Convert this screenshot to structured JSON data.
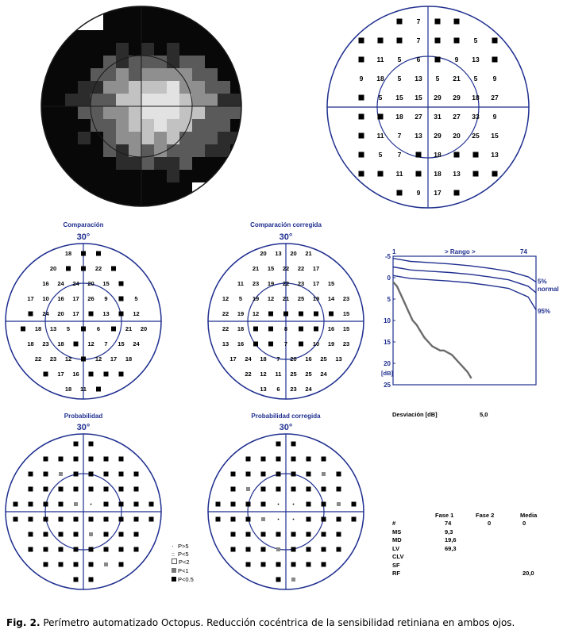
{
  "top_right_grid": {
    "values": [
      [
        "",
        "",
        "",
        "7",
        "",
        "",
        "",
        ""
      ],
      [
        "",
        "",
        "",
        "7",
        "",
        "",
        "5",
        ""
      ],
      [
        "",
        "11",
        "5",
        "6",
        "",
        "9",
        "13",
        ""
      ],
      [
        "9",
        "18",
        "5",
        "13",
        "5",
        "21",
        "5",
        "9"
      ],
      [
        "",
        "5",
        "15",
        "15",
        "29",
        "29",
        "18",
        "27"
      ],
      [
        "",
        "",
        "18",
        "27",
        "31",
        "27",
        "33",
        "9"
      ],
      [
        "",
        "11",
        "7",
        "13",
        "29",
        "20",
        "25",
        "15"
      ],
      [
        "",
        "5",
        "7",
        "",
        "18",
        "",
        "",
        "13"
      ],
      [
        "",
        "",
        "11",
        "",
        "18",
        "13",
        "",
        ""
      ],
      [
        "",
        "",
        "",
        "9",
        "17",
        "",
        "",
        ""
      ]
    ]
  },
  "panels": {
    "comparison": {
      "title": "Comparación",
      "degree": "30°"
    },
    "comparison_corrected": {
      "title": "Comparación corregida",
      "degree": "30°"
    },
    "probability": {
      "title": "Probabilidad",
      "degree": "30°"
    },
    "probability_corrected": {
      "title": "Probabilidad corregida",
      "degree": "30°"
    }
  },
  "comparison_grid": [
    [
      "",
      "18",
      "",
      "",
      ""
    ],
    [
      "20",
      "",
      "",
      "22",
      ""
    ],
    [
      "16",
      "24",
      "24",
      "20",
      "15",
      ""
    ],
    [
      "17",
      "10",
      "16",
      "17",
      "26",
      "9",
      "",
      "5"
    ],
    [
      "",
      "24",
      "20",
      "17",
      "",
      "13",
      "",
      "12"
    ],
    [
      "",
      "18",
      "13",
      "5",
      "",
      "6",
      "",
      "21",
      "20"
    ],
    [
      "18",
      "23",
      "18",
      "",
      "12",
      "7",
      "15",
      "24"
    ],
    [
      "22",
      "23",
      "12",
      "",
      "12",
      "17",
      "18"
    ],
    [
      "",
      "17",
      "16",
      "",
      "",
      ""
    ],
    [
      "",
      "18",
      "11",
      "",
      ""
    ]
  ],
  "comparison_corrected_grid": [
    [
      "20",
      "13",
      "20",
      "21"
    ],
    [
      "21",
      "15",
      "22",
      "22",
      "17"
    ],
    [
      "11",
      "23",
      "19",
      "22",
      "23",
      "17",
      "15"
    ],
    [
      "12",
      "5",
      "19",
      "12",
      "21",
      "25",
      "19",
      "14",
      "23"
    ],
    [
      "22",
      "19",
      "12",
      "",
      "",
      "",
      "",
      "",
      "15"
    ],
    [
      "22",
      "18",
      "",
      "",
      "8",
      "",
      "",
      "16",
      "15"
    ],
    [
      "13",
      "16",
      "",
      "",
      "7",
      "",
      "10",
      "19",
      "23"
    ],
    [
      "17",
      "24",
      "18",
      "7",
      "20",
      "16",
      "25",
      "13"
    ],
    [
      "22",
      "12",
      "11",
      "25",
      "25",
      "24"
    ],
    [
      "13",
      "6",
      "23",
      "24"
    ]
  ],
  "curve_chart": {
    "top_left": "1",
    "range_label": "> Rango >",
    "top_right": "74",
    "y_ticks": [
      "-5",
      "0",
      "5",
      "10",
      "15",
      "20",
      "25"
    ],
    "unit": "[dB]",
    "band_labels": [
      "5%",
      "normal",
      "95%"
    ]
  },
  "chart_data": {
    "type": "line",
    "x_range": [
      1,
      74
    ],
    "y_range": [
      -5,
      25
    ],
    "series": [
      {
        "x": [
          1,
          10,
          20,
          30,
          40,
          50,
          60,
          70,
          74
        ],
        "y": [
          -4.5,
          -3.8,
          -3.5,
          -3.2,
          -2.8,
          -2.2,
          -1.5,
          -0.2,
          1
        ]
      },
      {
        "x": [
          1,
          10,
          20,
          30,
          40,
          50,
          60,
          70,
          74
        ],
        "y": [
          -2.5,
          -1.8,
          -1.5,
          -1.2,
          -0.8,
          -0.2,
          0.5,
          2,
          3.5
        ]
      },
      {
        "x": [
          1,
          10,
          20,
          30,
          40,
          50,
          60,
          70,
          74
        ],
        "y": [
          -0.5,
          0.2,
          0.5,
          0.8,
          1.2,
          1.8,
          2.5,
          4.5,
          7.5
        ]
      },
      {
        "x": [
          1,
          3,
          5,
          7,
          9,
          11,
          13,
          15,
          17,
          19,
          21,
          23,
          25,
          27,
          29,
          31,
          33,
          35,
          37,
          39,
          41
        ],
        "y": [
          1,
          2,
          4,
          6,
          8,
          10,
          11,
          12.5,
          14,
          15,
          16,
          16.5,
          17,
          17,
          17.5,
          18,
          19,
          20,
          21,
          22,
          23.5
        ]
      }
    ]
  },
  "deviation": {
    "label": "Desviación [dB]",
    "value": "5,0"
  },
  "legend": [
    "P>5",
    "P<5",
    "P<2",
    "P<1",
    "P<0.5"
  ],
  "stats": {
    "headers": [
      "Fase 1",
      "Fase 2",
      "Media"
    ],
    "rows": [
      {
        "label": "#",
        "f1": "74",
        "f2": "0",
        "m": "0"
      },
      {
        "label": "MS",
        "f1": "9,3",
        "f2": "",
        "m": ""
      },
      {
        "label": "MD",
        "f1": "19,6",
        "f2": "",
        "m": ""
      },
      {
        "label": "LV",
        "f1": "69,3",
        "f2": "",
        "m": ""
      },
      {
        "label": "CLV",
        "f1": "",
        "f2": "",
        "m": ""
      },
      {
        "label": "SF",
        "f1": "",
        "f2": "",
        "m": ""
      },
      {
        "label": "RF",
        "f1": "",
        "f2": "",
        "m": "20,0"
      }
    ]
  },
  "caption": {
    "label": "Fig. 2.",
    "text": " Perímetro automatizado Octopus. Reducción cocéntrica de la sensibilidad retiniana en ambos ojos."
  }
}
